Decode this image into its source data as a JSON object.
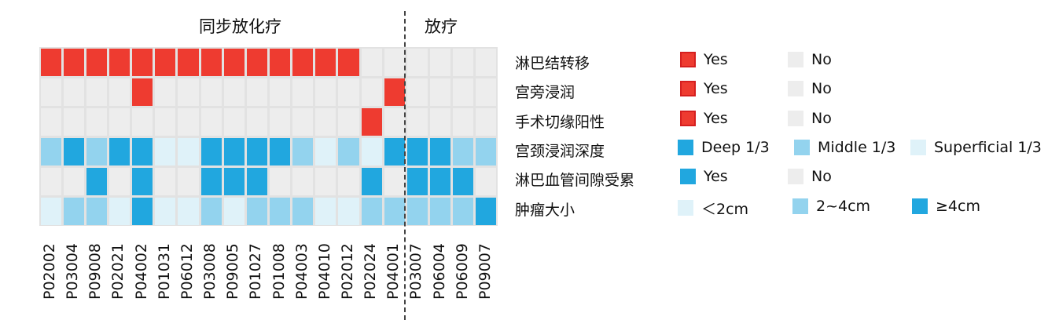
{
  "chart_data": {
    "type": "heatmap",
    "groups": [
      {
        "label": "同步放化疗",
        "count": 16
      },
      {
        "label": "放疗",
        "count": 4
      }
    ],
    "patients": [
      "P02002",
      "P03004",
      "P09008",
      "P02021",
      "P04002",
      "P01031",
      "P06012",
      "P03008",
      "P09005",
      "P01027",
      "P01008",
      "P04003",
      "P04010",
      "P02012",
      "P02024",
      "P04001",
      "P03007",
      "P06004",
      "P06009",
      "P09007"
    ],
    "rows": [
      {
        "label": "淋巴结转移",
        "values": [
          "Y",
          "Y",
          "Y",
          "Y",
          "Y",
          "Y",
          "Y",
          "Y",
          "Y",
          "Y",
          "Y",
          "Y",
          "Y",
          "Y",
          "N",
          "N",
          "N",
          "N",
          "N",
          "N"
        ],
        "legend": [
          {
            "key": "Y",
            "label": "Yes",
            "color": "#ee3b30"
          },
          {
            "key": "N",
            "label": "No",
            "color": "#ededed"
          }
        ]
      },
      {
        "label": "宫旁浸润",
        "values": [
          "N",
          "N",
          "N",
          "N",
          "Y",
          "N",
          "N",
          "N",
          "N",
          "N",
          "N",
          "N",
          "N",
          "N",
          "N",
          "Y",
          "N",
          "N",
          "N",
          "N"
        ],
        "legend": [
          {
            "key": "Y",
            "label": "Yes",
            "color": "#ee3b30"
          },
          {
            "key": "N",
            "label": "No",
            "color": "#ededed"
          }
        ]
      },
      {
        "label": "手术切缘阳性",
        "values": [
          "N",
          "N",
          "N",
          "N",
          "N",
          "N",
          "N",
          "N",
          "N",
          "N",
          "N",
          "N",
          "N",
          "N",
          "Y",
          "N",
          "N",
          "N",
          "N",
          "N"
        ],
        "legend": [
          {
            "key": "Y",
            "label": "Yes",
            "color": "#ee3b30"
          },
          {
            "key": "N",
            "label": "No",
            "color": "#ededed"
          }
        ]
      },
      {
        "label": "宫颈浸润深度",
        "values": [
          "M",
          "D",
          "M",
          "D",
          "D",
          "S",
          "S",
          "D",
          "D",
          "D",
          "D",
          "M",
          "S",
          "M",
          "S",
          "D",
          "D",
          "D",
          "M",
          "M"
        ],
        "legend": [
          {
            "key": "D",
            "label": "Deep 1/3",
            "color": "#21a7df"
          },
          {
            "key": "M",
            "label": "Middle 1/3",
            "color": "#93d3ee"
          },
          {
            "key": "S",
            "label": "Superficial 1/3",
            "color": "#dff2f9"
          }
        ]
      },
      {
        "label": "淋巴血管间隙受累",
        "values": [
          "N",
          "N",
          "Y",
          "N",
          "Y",
          "N",
          "N",
          "Y",
          "Y",
          "Y",
          "N",
          "N",
          "N",
          "N",
          "Y",
          "N",
          "Y",
          "Y",
          "Y",
          "N"
        ],
        "legend": [
          {
            "key": "Y",
            "label": "Yes",
            "color": "#21a7df"
          },
          {
            "key": "N",
            "label": "No",
            "color": "#ededed"
          }
        ]
      },
      {
        "label": "肿瘤大小",
        "values": [
          "S",
          "M",
          "M",
          "S",
          "L",
          "S",
          "S",
          "M",
          "S",
          "M",
          "M",
          "M",
          "S",
          "S",
          "M",
          "M",
          "M",
          "M",
          "M",
          "L"
        ],
        "legend": [
          {
            "key": "S",
            "label": "＜2cm",
            "color": "#dff2f9"
          },
          {
            "key": "M",
            "label": "2~4cm",
            "color": "#93d3ee"
          },
          {
            "key": "L",
            "label": "≥4cm",
            "color": "#21a7df"
          }
        ]
      }
    ]
  }
}
